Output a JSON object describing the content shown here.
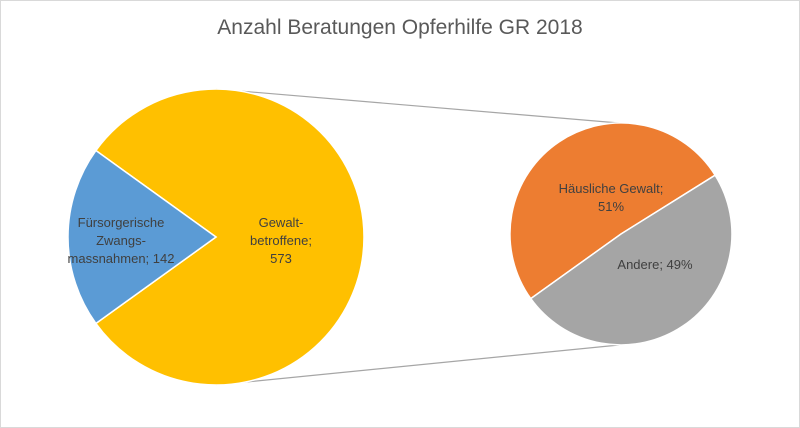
{
  "chart_data": {
    "type": "pie",
    "title": "Anzahl Beratungen Opferhilfe GR 2018",
    "main_pie": {
      "slices": [
        {
          "label_lines": [
            "Gewalt-",
            "betroffene;",
            "573"
          ],
          "category": "Gewaltbetroffene",
          "value": 573,
          "color": "#ffc000"
        },
        {
          "label_lines": [
            "Fürsorgerische",
            "Zwangs-",
            "massnahmen; 142"
          ],
          "category": "Fürsorgerische Zwangsmassnahmen",
          "value": 142,
          "color": "#5b9bd5"
        }
      ]
    },
    "secondary_pie": {
      "breakdown_of": "Gewaltbetroffene",
      "slices": [
        {
          "label_lines": [
            "Häusliche Gewalt;",
            "51%"
          ],
          "category": "Häusliche Gewalt",
          "value": 51,
          "unit": "%",
          "color": "#ed7d31"
        },
        {
          "label_lines": [
            "Andere; 49%"
          ],
          "category": "Andere",
          "value": 49,
          "unit": "%",
          "color": "#a5a5a5"
        }
      ]
    },
    "legend": "none",
    "connector_color": "#a6a6a6"
  }
}
